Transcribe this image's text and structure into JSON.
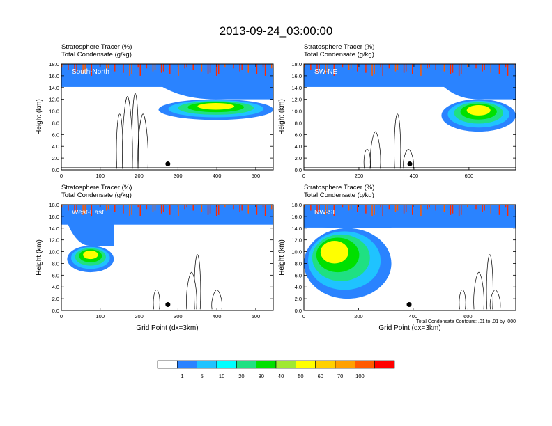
{
  "figure": {
    "title": "2013-09-24_03:00:00",
    "field_label_1": "Stratosphere Tracer   (%)",
    "field_label_2": "Total Condensate   (g/kg)",
    "ylabel": "Height (km)",
    "xlabel": "Grid Point (dx=3km)",
    "contour_note": "Total Condensate Contours: .01 to .01 by .000"
  },
  "colorbar": {
    "levels": [
      "1",
      "5",
      "10",
      "20",
      "30",
      "40",
      "50",
      "60",
      "70",
      "100"
    ],
    "colors": [
      "#ffffff",
      "#2a83ff",
      "#1fc3ff",
      "#00ffff",
      "#1fe082",
      "#00e000",
      "#a0e832",
      "#ffff00",
      "#ffd000",
      "#ffa000",
      "#ff5a00",
      "#ff0000"
    ]
  },
  "chart_data": [
    {
      "type": "contour",
      "panel": "South-North",
      "x_range": [
        0,
        545
      ],
      "x_ticks": [
        "0",
        "100",
        "200",
        "300",
        "400",
        "500"
      ],
      "ylim": [
        0,
        18
      ],
      "y_ticks": [
        "0.0",
        "2.0",
        "4.0",
        "6.0",
        "8.0",
        "10.0",
        "12.0",
        "14.0",
        "16.0",
        "18.0"
      ],
      "tropopause_km": 14.5,
      "stratosphere_tracer_pct": [
        1,
        100
      ],
      "intrusion": {
        "x": [
          250,
          545
        ],
        "top_km": 12.0,
        "bottom_km": 8.5
      },
      "condensate_columns_x": [
        150,
        170,
        190,
        210
      ],
      "marker": {
        "x": 274,
        "y_km": 1.0
      }
    },
    {
      "type": "contour",
      "panel": "SW-NE",
      "x_range": [
        0,
        770
      ],
      "x_ticks": [
        "0",
        "200",
        "400",
        "600"
      ],
      "ylim": [
        0,
        18
      ],
      "y_ticks": [
        "0.0",
        "2.0",
        "4.0",
        "6.0",
        "8.0",
        "10.0",
        "12.0",
        "14.0",
        "16.0",
        "18.0"
      ],
      "tropopause_km": 14.5,
      "stratosphere_tracer_pct": [
        1,
        100
      ],
      "intrusion": {
        "x": [
          500,
          770
        ],
        "top_km": 12.0,
        "bottom_km": 6.5
      },
      "condensate_columns_x": [
        230,
        260,
        340,
        380
      ],
      "marker": {
        "x": 385,
        "y_km": 1.0
      }
    },
    {
      "type": "contour",
      "panel": "West-East",
      "x_range": [
        0,
        545
      ],
      "x_ticks": [
        "0",
        "100",
        "200",
        "300",
        "400",
        "500"
      ],
      "ylim": [
        0,
        18
      ],
      "y_ticks": [
        "0.0",
        "2.0",
        "4.0",
        "6.0",
        "8.0",
        "10.0",
        "12.0",
        "14.0",
        "16.0",
        "18.0"
      ],
      "tropopause_km": 15.0,
      "stratosphere_tracer_pct": [
        1,
        100
      ],
      "intrusion": {
        "x": [
          15,
          135
        ],
        "top_km": 11.0,
        "bottom_km": 6.5
      },
      "condensate_columns_x": [
        245,
        335,
        350,
        400
      ],
      "marker": {
        "x": 274,
        "y_km": 1.0
      }
    },
    {
      "type": "contour",
      "panel": "NW-SE",
      "x_range": [
        0,
        775
      ],
      "x_ticks": [
        "0",
        "200",
        "400",
        "600"
      ],
      "ylim": [
        0,
        18
      ],
      "y_ticks": [
        "0.0",
        "2.0",
        "4.0",
        "6.0",
        "8.0",
        "10.0",
        "12.0",
        "14.0",
        "16.0",
        "18.0"
      ],
      "tropopause_km": 14.5,
      "stratosphere_tracer_pct": [
        1,
        100
      ],
      "intrusion": {
        "x": [
          0,
          320
        ],
        "top_km": 14.0,
        "bottom_km": 2.0
      },
      "condensate_columns_x": [
        580,
        640,
        680,
        700
      ],
      "marker": {
        "x": 385,
        "y_km": 1.0
      }
    }
  ]
}
